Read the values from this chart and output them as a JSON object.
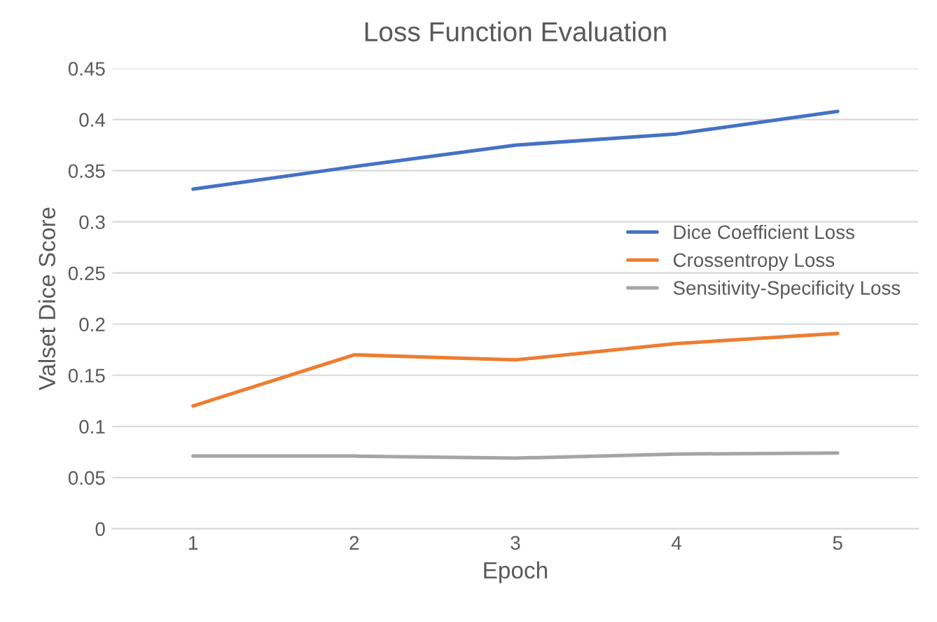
{
  "chart_data": {
    "type": "line",
    "title": "Loss Function Evaluation",
    "xlabel": "Epoch",
    "ylabel": "Valset Dice Score",
    "categories": [
      "1",
      "2",
      "3",
      "4",
      "5"
    ],
    "series": [
      {
        "name": "Dice Coefficient Loss",
        "color": "#4472c4",
        "values": [
          0.332,
          0.354,
          0.375,
          0.386,
          0.408
        ]
      },
      {
        "name": "Crossentropy Loss",
        "color": "#ed7d31",
        "values": [
          0.12,
          0.17,
          0.165,
          0.181,
          0.191
        ]
      },
      {
        "name": "Sensitivity-Specificity Loss",
        "color": "#a5a5a5",
        "values": [
          0.071,
          0.071,
          0.069,
          0.073,
          0.074
        ]
      }
    ],
    "ylim": [
      0,
      0.45
    ],
    "yticks": [
      0,
      0.05,
      0.1,
      0.15,
      0.2,
      0.25,
      0.3,
      0.35,
      0.4,
      0.45
    ],
    "grid": "y",
    "legend": "right",
    "marker": "none",
    "line_style": "solid"
  }
}
